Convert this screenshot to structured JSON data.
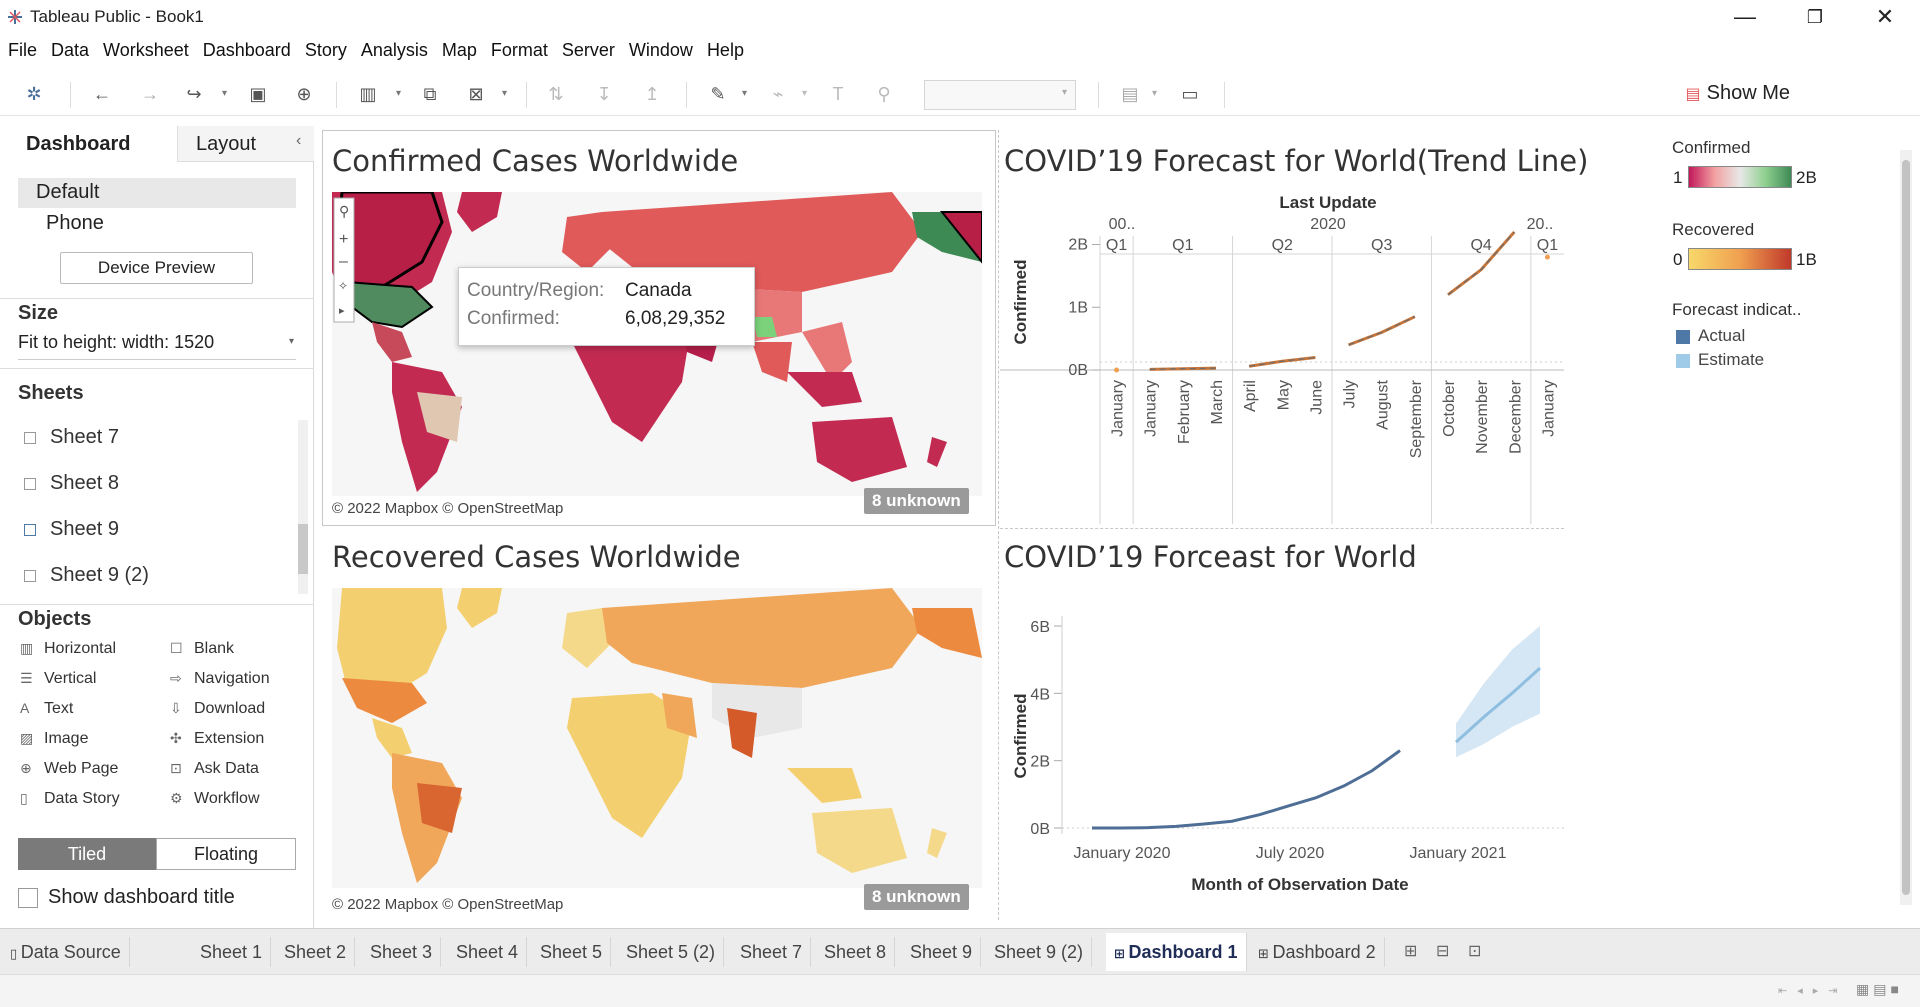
{
  "window": {
    "title": "Tableau Public - Book1"
  },
  "menu": [
    "File",
    "Data",
    "Worksheet",
    "Dashboard",
    "Story",
    "Analysis",
    "Map",
    "Format",
    "Server",
    "Window",
    "Help"
  ],
  "toolbar": {
    "show_me": "Show Me"
  },
  "leftpane": {
    "tabs": {
      "dashboard": "Dashboard",
      "layout": "Layout"
    },
    "devices": {
      "default": "Default",
      "phone": "Phone",
      "preview_button": "Device Preview"
    },
    "size": {
      "heading": "Size",
      "value": "Fit to height: width: 1520"
    },
    "sheets": {
      "heading": "Sheets",
      "items": [
        "Sheet 7",
        "Sheet 8",
        "Sheet 9",
        "Sheet 9 (2)"
      ]
    },
    "objects": {
      "heading": "Objects",
      "items": [
        "Horizontal",
        "Blank",
        "Vertical",
        "Navigation",
        "Text",
        "Download",
        "Image",
        "Extension",
        "Web Page",
        "Ask Data",
        "Data Story",
        "Workflow"
      ]
    },
    "layout_mode": {
      "tiled": "Tiled",
      "floating": "Floating"
    },
    "show_title": "Show dashboard title"
  },
  "dashboard": {
    "map1": {
      "title": "Confirmed Cases Worldwide",
      "copyright": "© 2022 Mapbox © OpenStreetMap",
      "unknown": "8 unknown"
    },
    "map2": {
      "title": "Recovered Cases Worldwide",
      "copyright": "© 2022 Mapbox © OpenStreetMap",
      "unknown": "8 unknown"
    },
    "tooltip": {
      "label1": "Country/Region:",
      "value1": "Canada",
      "label2": "Confirmed:",
      "value2": "6,08,29,352"
    },
    "chart1_title": "COVID’19 Forecast for World(Trend Line)",
    "chart2_title": "COVID’19  Forceast for World",
    "legends": {
      "confirmed": {
        "title": "Confirmed",
        "min": "1",
        "max": "2B"
      },
      "recovered": {
        "title": "Recovered",
        "min": "0",
        "max": "1B"
      },
      "forecast": {
        "title": "Forecast indicat..",
        "items": [
          "Actual",
          "Estimate"
        ],
        "colors": [
          "#4e79a7",
          "#a0cbe8"
        ]
      }
    }
  },
  "chart_data": [
    {
      "type": "line",
      "title": "COVID’19 Forecast for World(Trend Line)",
      "header_title": "Last Update",
      "year_labels": [
        "00..",
        "2020",
        "20.."
      ],
      "quarter_labels": [
        "Q1",
        "Q1",
        "Q2",
        "Q3",
        "Q4",
        "Q1"
      ],
      "month_labels": [
        "January",
        "January",
        "February",
        "March",
        "April",
        "May",
        "June",
        "July",
        "August",
        "September",
        "October",
        "November",
        "December",
        "January"
      ],
      "ylabel": "Confirmed",
      "yticks": [
        "2B",
        "1B",
        "0B"
      ],
      "ylim": [
        0,
        2.2
      ],
      "series": [
        {
          "name": "Trend",
          "values": [
            0.0,
            0.01,
            0.02,
            0.03,
            0.06,
            0.14,
            0.2,
            0.4,
            0.6,
            0.85,
            1.2,
            1.6,
            2.2,
            1.8
          ]
        }
      ]
    },
    {
      "type": "line",
      "title": "COVID’19  Forceast for World",
      "xlabel": "Month of Observation Date",
      "ylabel": "Confirmed",
      "xticks": [
        "January 2020",
        "July 2020",
        "January 2021"
      ],
      "yticks": [
        "6B",
        "4B",
        "2B",
        "0B"
      ],
      "ylim": [
        0,
        6
      ],
      "series": [
        {
          "name": "Actual",
          "values": [
            0.0,
            0.0,
            0.01,
            0.05,
            0.12,
            0.2,
            0.4,
            0.65,
            0.9,
            1.25,
            1.7,
            2.3
          ]
        },
        {
          "name": "Estimate",
          "values": [
            2.55,
            3.3,
            4.0,
            4.75
          ],
          "upper": [
            3.1,
            4.3,
            5.3,
            6.0
          ],
          "lower": [
            2.1,
            2.5,
            3.0,
            3.4
          ]
        }
      ]
    }
  ],
  "tabs": [
    "Data Source",
    "Sheet 1",
    "Sheet 2",
    "Sheet 3",
    "Sheet 4",
    "Sheet 5",
    "Sheet 5 (2)",
    "Sheet 7",
    "Sheet 8",
    "Sheet 9",
    "Sheet 9 (2)",
    "Dashboard 1",
    "Dashboard 2"
  ],
  "active_tab": "Dashboard 1"
}
